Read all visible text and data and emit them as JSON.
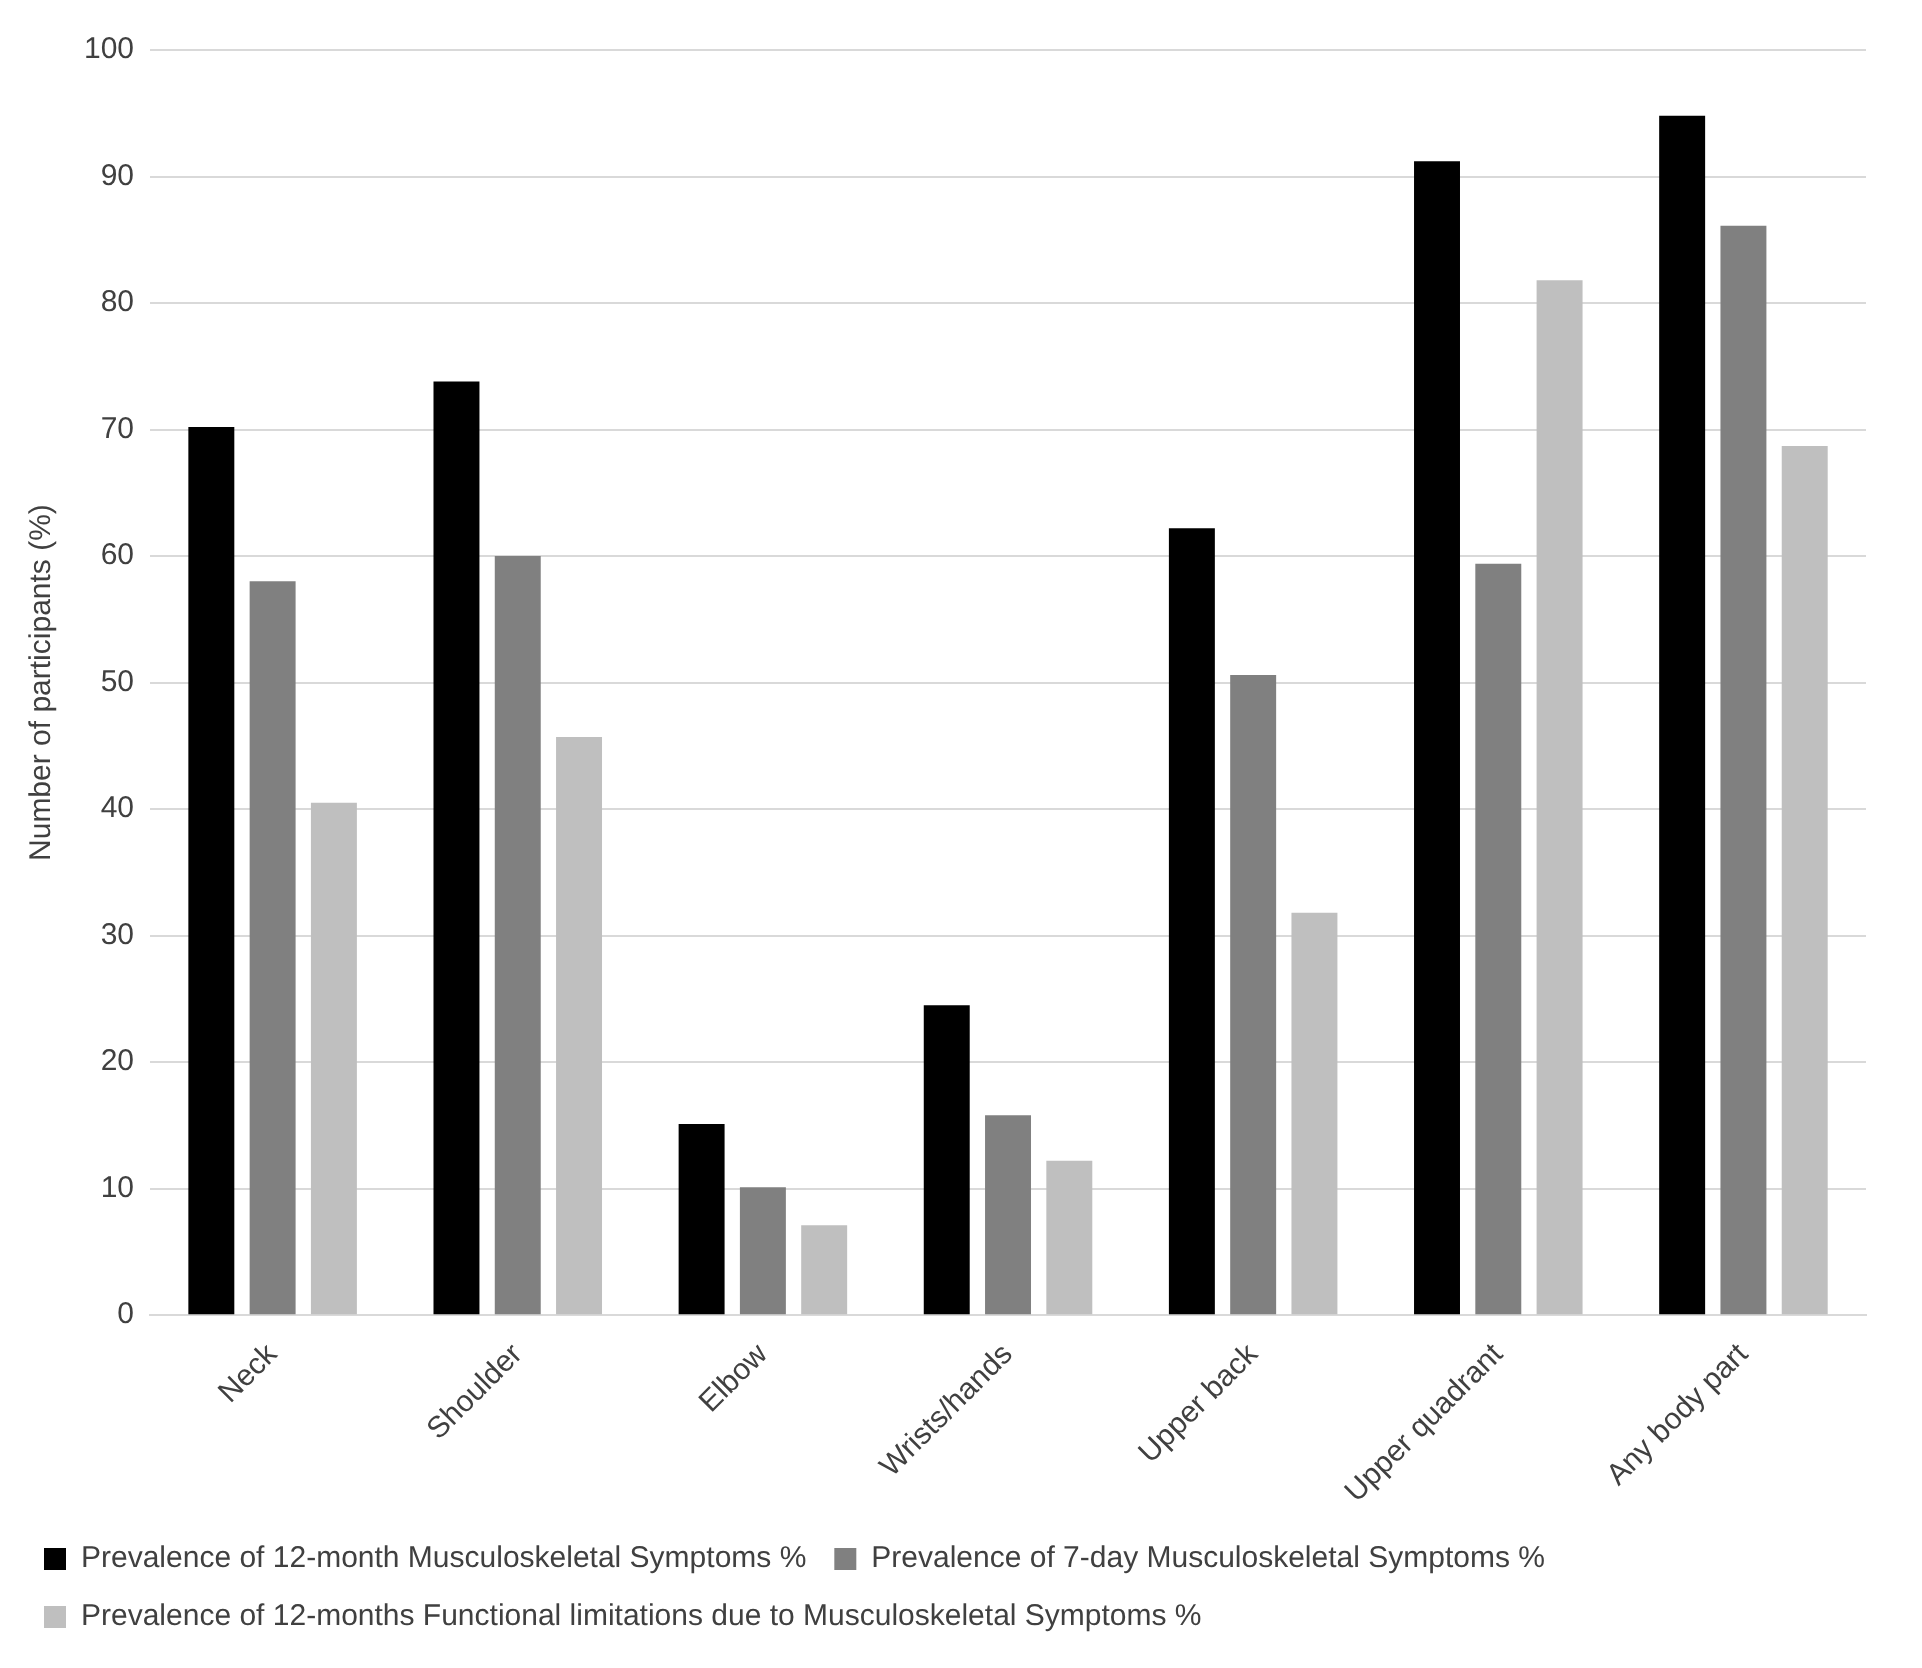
{
  "chart_data": {
    "type": "bar",
    "ylabel": "Number of participants (%)",
    "categories": [
      "Neck",
      "Shoulder",
      "Elbow",
      "Wrists/hands",
      "Upper back",
      "Upper quadrant",
      "Any body part"
    ],
    "series": [
      {
        "name": "Prevalence of 12-month Musculoskeletal Symptoms %",
        "color": "#000000",
        "values": [
          70.2,
          73.8,
          15.1,
          24.5,
          62.2,
          91.2,
          94.8
        ]
      },
      {
        "name": "Prevalence of 7-day Musculoskeletal Symptoms %",
        "color": "#808080",
        "values": [
          58,
          60,
          10.1,
          15.8,
          50.6,
          59.4,
          86.1
        ]
      },
      {
        "name": "Prevalence of 12-months Functional limitations due to Musculoskeletal Symptoms %",
        "color": "#bfbfbf",
        "values": [
          40.5,
          45.7,
          7.1,
          12.2,
          31.8,
          81.8,
          68.7
        ]
      }
    ],
    "ylim": [
      0,
      100
    ],
    "yticks": [
      0,
      10,
      20,
      30,
      40,
      50,
      60,
      70,
      80,
      90,
      100
    ],
    "grid": "y",
    "legend": "bottom"
  }
}
